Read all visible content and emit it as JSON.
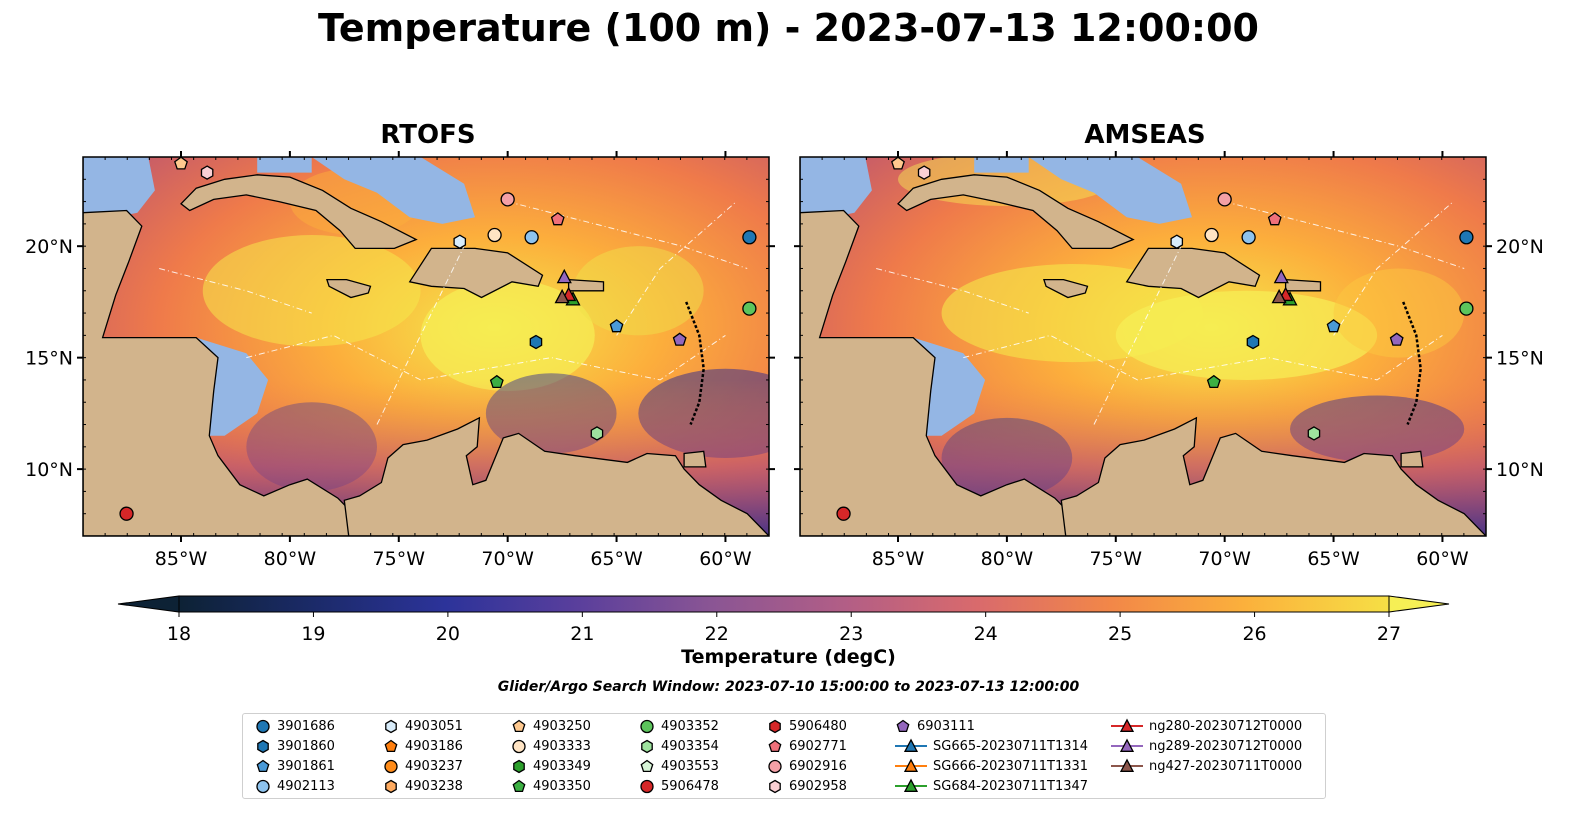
{
  "title": "Temperature (100 m) - 2023-07-13 12:00:00",
  "panels": [
    {
      "title": "RTOFS"
    },
    {
      "title": "AMSEAS"
    }
  ],
  "axes": {
    "lon_ticks": [
      "85°W",
      "80°W",
      "75°W",
      "70°W",
      "65°W",
      "60°W"
    ],
    "lat_ticks": [
      "20°N",
      "15°N",
      "10°N"
    ],
    "lon_range": [
      -89.5,
      -58.0
    ],
    "lat_range": [
      7.0,
      24.0
    ]
  },
  "colors": {
    "land": "#d2b48c",
    "shallow_water": "#94b6e4"
  },
  "colorbar": {
    "label": "Temperature (degC)",
    "ticks": [
      "18",
      "19",
      "20",
      "21",
      "22",
      "23",
      "24",
      "25",
      "26",
      "27"
    ],
    "colormap": "thermal",
    "extend": "both"
  },
  "search_window": "Glider/Argo Search Window: 2023-07-10 15:00:00 to 2023-07-13 12:00:00",
  "platforms": [
    {
      "id": "3901686",
      "marker": "circle",
      "color": "#1f77b4",
      "lon": -58.9,
      "lat": 20.4
    },
    {
      "id": "3901860",
      "marker": "hexagon",
      "color": "#1f77b4",
      "lon": -68.7,
      "lat": 15.7
    },
    {
      "id": "3901861",
      "marker": "pentagon",
      "color": "#4a9ad8",
      "lon": -65.0,
      "lat": 16.4
    },
    {
      "id": "4902113",
      "marker": "circle",
      "color": "#8ec3ee",
      "lon": -68.9,
      "lat": 20.4
    },
    {
      "id": "4903051",
      "marker": "hexagon",
      "color": "#d8ecfa",
      "lon": -72.2,
      "lat": 20.2
    },
    {
      "id": "4903186",
      "marker": "pentagon",
      "color": "#ff7f0e",
      "lon": null,
      "lat": null
    },
    {
      "id": "4903237",
      "marker": "circle",
      "color": "#ff8c1a",
      "lon": null,
      "lat": null
    },
    {
      "id": "4903238",
      "marker": "hexagon",
      "color": "#ffab60",
      "lon": null,
      "lat": null
    },
    {
      "id": "4903250",
      "marker": "pentagon",
      "color": "#ffc98f",
      "lon": -85.0,
      "lat": 23.7
    },
    {
      "id": "4903333",
      "marker": "circle",
      "color": "#ffe4c4",
      "lon": -70.6,
      "lat": 20.5
    },
    {
      "id": "4903349",
      "marker": "hexagon",
      "color": "#2ca02c",
      "lon": null,
      "lat": null
    },
    {
      "id": "4903350",
      "marker": "pentagon",
      "color": "#3cb043",
      "lon": -70.5,
      "lat": 13.9
    },
    {
      "id": "4903352",
      "marker": "circle",
      "color": "#5cc45c",
      "lon": -58.9,
      "lat": 17.2
    },
    {
      "id": "4903354",
      "marker": "hexagon",
      "color": "#9ee39e",
      "lon": -65.9,
      "lat": 11.6
    },
    {
      "id": "4903553",
      "marker": "pentagon",
      "color": "#d8f5d8",
      "lon": null,
      "lat": null
    },
    {
      "id": "5906478",
      "marker": "circle",
      "color": "#d62728",
      "lon": -87.5,
      "lat": 8.0
    },
    {
      "id": "5906480",
      "marker": "hexagon",
      "color": "#d62728",
      "lon": null,
      "lat": null
    },
    {
      "id": "6902771",
      "marker": "pentagon",
      "color": "#f0707a",
      "lon": -67.7,
      "lat": 21.2
    },
    {
      "id": "6902916",
      "marker": "circle",
      "color": "#f4a0a6",
      "lon": -70.0,
      "lat": 22.1
    },
    {
      "id": "6902958",
      "marker": "hexagon",
      "color": "#fad0d4",
      "lon": -83.8,
      "lat": 23.3
    },
    {
      "id": "6903111",
      "marker": "pentagon",
      "color": "#9467bd",
      "lon": -62.1,
      "lat": 15.8
    },
    {
      "id": "SG665-20230711T1314",
      "marker": "triangle-line",
      "color": "#1f77b4",
      "lon": null,
      "lat": null
    },
    {
      "id": "SG666-20230711T1331",
      "marker": "triangle-line",
      "color": "#ff7f0e",
      "lon": null,
      "lat": null
    },
    {
      "id": "SG684-20230711T1347",
      "marker": "triangle-line",
      "color": "#2ca02c",
      "lon": -67.0,
      "lat": 17.6
    },
    {
      "id": "ng280-20230712T0000",
      "marker": "triangle-line",
      "color": "#d62728",
      "lon": -67.2,
      "lat": 17.8
    },
    {
      "id": "ng289-20230712T0000",
      "marker": "triangle-line",
      "color": "#9467bd",
      "lon": -67.4,
      "lat": 18.6
    },
    {
      "id": "ng427-20230711T0000",
      "marker": "triangle-line",
      "color": "#8c564b",
      "lon": -67.5,
      "lat": 17.7
    }
  ]
}
